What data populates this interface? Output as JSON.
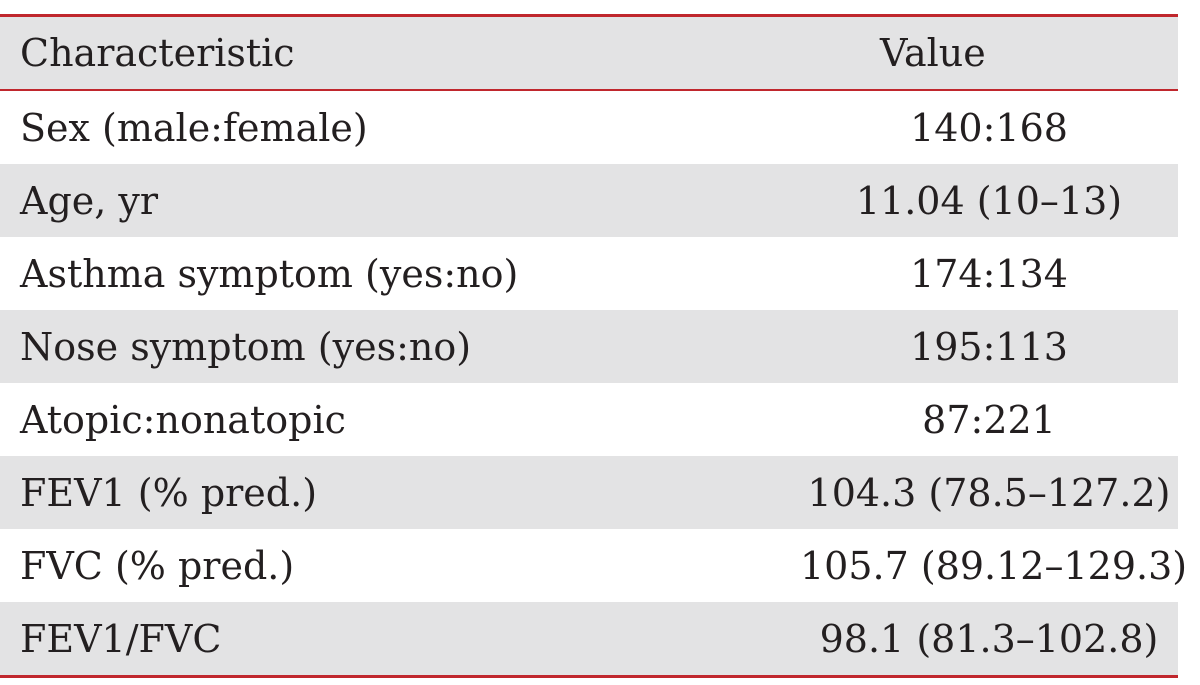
{
  "table": {
    "headers": {
      "characteristic": "Characteristic",
      "value": "Value"
    },
    "rows": [
      {
        "characteristic": "Sex (male:female)",
        "value": "140:168"
      },
      {
        "characteristic": "Age, yr",
        "value": "11.04 (10–13)"
      },
      {
        "characteristic": "Asthma symptom (yes:no)",
        "value": "174:134"
      },
      {
        "characteristic": "Nose symptom (yes:no)",
        "value": "195:113"
      },
      {
        "characteristic": "Atopic:nonatopic",
        "value": "87:221"
      },
      {
        "characteristic": "FEV1 (% pred.)",
        "value": "104.3 (78.5–127.2)"
      },
      {
        "characteristic": "FVC (% pred.)",
        "value": "105.7 (89.12–129.3)"
      },
      {
        "characteristic": "FEV1/FVC",
        "value": "98.1 (81.3–102.8)"
      }
    ]
  },
  "colors": {
    "rule": "#c0272d",
    "shade": "#e3e3e4",
    "text": "#231f20"
  }
}
